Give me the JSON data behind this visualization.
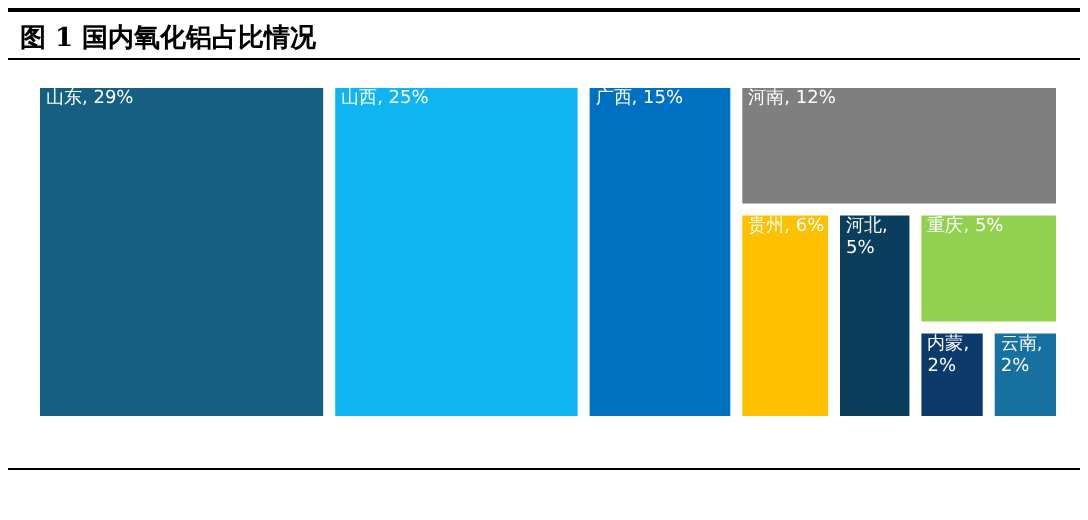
{
  "chart_data": {
    "type": "other",
    "title": "图 1  国内氧化铝占比情况",
    "categories": [
      "山东",
      "山西",
      "广西",
      "河南",
      "贵州",
      "重庆",
      "河北",
      "云南",
      "内蒙"
    ],
    "values": [
      29,
      25,
      15,
      12,
      6,
      5,
      5,
      2,
      2
    ],
    "value_labels": [
      ", 29%",
      ", 25%",
      ", 15%",
      ", 12%",
      ", 6%",
      ", 5%",
      ", 5%",
      ", 2%",
      ", 2%"
    ],
    "colors": [
      "#156082",
      "#0fb5f2",
      "#0070c0",
      "#7f7f7f",
      "#ffc000",
      "#92d050",
      "#0b3d5c",
      "#1670a0",
      "#0b3a6b"
    ]
  }
}
